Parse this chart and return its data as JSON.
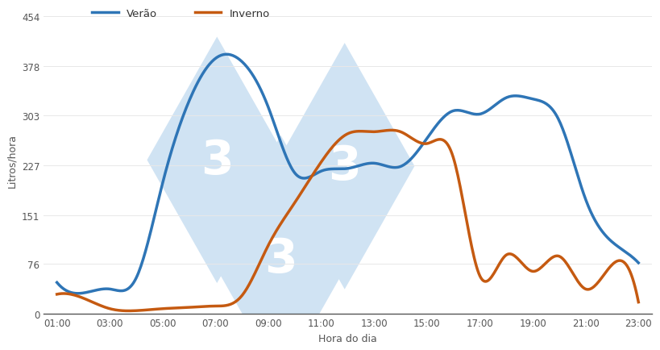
{
  "title": "",
  "xlabel": "Hora do dia",
  "ylabel": "Litros/hora",
  "legend_verao": "Verão",
  "legend_inverno": "Inverno",
  "color_verao": "#2E75B6",
  "color_inverno": "#C55A11",
  "yticks": [
    0,
    76,
    151,
    227,
    303,
    378,
    454
  ],
  "xtick_labels": [
    "01:00",
    "03:00",
    "05:00",
    "07:00",
    "09:00",
    "11:00",
    "13:00",
    "15:00",
    "17:00",
    "19:00",
    "21:00",
    "23:00"
  ],
  "ylim": [
    0,
    470
  ],
  "verao_x": [
    1,
    2,
    3,
    4,
    5,
    6,
    7,
    8,
    9,
    10,
    11,
    12,
    13,
    14,
    15,
    16,
    17,
    18,
    19,
    20,
    21,
    22,
    23
  ],
  "verao_y": [
    48,
    32,
    38,
    55,
    200,
    325,
    390,
    385,
    315,
    215,
    218,
    222,
    230,
    225,
    268,
    310,
    305,
    330,
    328,
    295,
    175,
    110,
    78
  ],
  "inverno_y": [
    30,
    24,
    8,
    5,
    8,
    10,
    12,
    28,
    105,
    170,
    232,
    275,
    278,
    278,
    260,
    238,
    58,
    90,
    65,
    88,
    38,
    75,
    18
  ],
  "line_width": 2.5,
  "watermark_color": "#D0E3F3",
  "bg_color": "#FFFFFF"
}
